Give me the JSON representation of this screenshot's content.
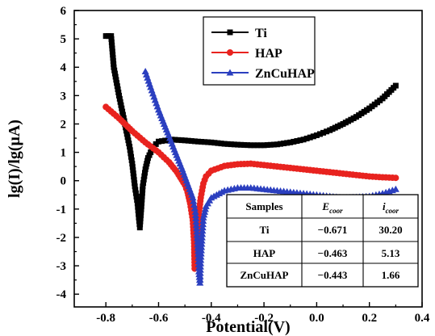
{
  "chart_data": {
    "type": "scatter",
    "xlabel": "Potential(V)",
    "ylabel": "lg(I)/lg(μA)",
    "xlim": [
      -0.92,
      0.4
    ],
    "ylim": [
      -4.45,
      6
    ],
    "xticks": [
      -0.8,
      -0.6,
      -0.4,
      -0.2,
      0.0,
      0.2,
      0.4
    ],
    "xtick_labels": [
      "-0.8",
      "-0.6",
      "-0.4",
      "-0.2",
      "0.0",
      "0.2",
      "0.4"
    ],
    "yticks": [
      -4,
      -3,
      -2,
      -1,
      0,
      1,
      2,
      3,
      4,
      5,
      6
    ],
    "ytick_labels": [
      "-4",
      "-3",
      "-2",
      "-1",
      "0",
      "1",
      "2",
      "3",
      "4",
      "5",
      "6"
    ],
    "legend_position": "top-right",
    "series": [
      {
        "name": "Ti",
        "marker": "square",
        "color": "#000000",
        "points": [
          [
            -0.8,
            5.1
          ],
          [
            -0.78,
            5.1
          ],
          [
            -0.77,
            4.0
          ],
          [
            -0.75,
            3.0
          ],
          [
            -0.73,
            2.1
          ],
          [
            -0.71,
            1.2
          ],
          [
            -0.7,
            0.6
          ],
          [
            -0.69,
            -0.2
          ],
          [
            -0.68,
            -0.8
          ],
          [
            -0.675,
            -1.3
          ],
          [
            -0.671,
            -1.65
          ],
          [
            -0.665,
            -0.9
          ],
          [
            -0.66,
            -0.2
          ],
          [
            -0.65,
            0.4
          ],
          [
            -0.64,
            0.8
          ],
          [
            -0.62,
            1.2
          ],
          [
            -0.6,
            1.38
          ],
          [
            -0.55,
            1.45
          ],
          [
            -0.5,
            1.42
          ],
          [
            -0.45,
            1.38
          ],
          [
            -0.4,
            1.35
          ],
          [
            -0.35,
            1.3
          ],
          [
            -0.3,
            1.27
          ],
          [
            -0.25,
            1.25
          ],
          [
            -0.2,
            1.25
          ],
          [
            -0.15,
            1.28
          ],
          [
            -0.1,
            1.35
          ],
          [
            -0.05,
            1.45
          ],
          [
            0.0,
            1.6
          ],
          [
            0.05,
            1.78
          ],
          [
            0.1,
            2.0
          ],
          [
            0.15,
            2.25
          ],
          [
            0.2,
            2.55
          ],
          [
            0.25,
            2.9
          ],
          [
            0.3,
            3.35
          ]
        ]
      },
      {
        "name": "HAP",
        "marker": "circle",
        "color": "#e8231f",
        "points": [
          [
            -0.8,
            2.6
          ],
          [
            -0.75,
            2.2
          ],
          [
            -0.7,
            1.75
          ],
          [
            -0.65,
            1.35
          ],
          [
            -0.6,
            1.0
          ],
          [
            -0.56,
            0.65
          ],
          [
            -0.53,
            0.3
          ],
          [
            -0.5,
            -0.15
          ],
          [
            -0.49,
            -0.4
          ],
          [
            -0.48,
            -0.8
          ],
          [
            -0.47,
            -1.4
          ],
          [
            -0.465,
            -2.2
          ],
          [
            -0.463,
            -3.1
          ],
          [
            -0.455,
            -2.3
          ],
          [
            -0.45,
            -1.4
          ],
          [
            -0.44,
            -0.6
          ],
          [
            -0.43,
            -0.1
          ],
          [
            -0.42,
            0.15
          ],
          [
            -0.4,
            0.35
          ],
          [
            -0.35,
            0.52
          ],
          [
            -0.3,
            0.58
          ],
          [
            -0.25,
            0.6
          ],
          [
            -0.2,
            0.55
          ],
          [
            -0.15,
            0.5
          ],
          [
            -0.1,
            0.45
          ],
          [
            -0.05,
            0.4
          ],
          [
            0.0,
            0.35
          ],
          [
            0.05,
            0.3
          ],
          [
            0.1,
            0.25
          ],
          [
            0.15,
            0.2
          ],
          [
            0.2,
            0.15
          ],
          [
            0.25,
            0.12
          ],
          [
            0.3,
            0.1
          ]
        ]
      },
      {
        "name": "ZnCuHAP",
        "marker": "triangle",
        "color": "#2b3fbf",
        "points": [
          [
            -0.65,
            3.85
          ],
          [
            -0.63,
            3.3
          ],
          [
            -0.6,
            2.5
          ],
          [
            -0.57,
            1.8
          ],
          [
            -0.54,
            1.1
          ],
          [
            -0.51,
            0.4
          ],
          [
            -0.49,
            -0.1
          ],
          [
            -0.47,
            -0.6
          ],
          [
            -0.46,
            -1.1
          ],
          [
            -0.455,
            -1.8
          ],
          [
            -0.45,
            -2.6
          ],
          [
            -0.447,
            -3.2
          ],
          [
            -0.443,
            -3.6
          ],
          [
            -0.44,
            -2.8
          ],
          [
            -0.435,
            -2.0
          ],
          [
            -0.43,
            -1.3
          ],
          [
            -0.42,
            -0.9
          ],
          [
            -0.4,
            -0.6
          ],
          [
            -0.35,
            -0.35
          ],
          [
            -0.3,
            -0.25
          ],
          [
            -0.25,
            -0.25
          ],
          [
            -0.2,
            -0.3
          ],
          [
            -0.15,
            -0.35
          ],
          [
            -0.1,
            -0.4
          ],
          [
            -0.05,
            -0.45
          ],
          [
            0.0,
            -0.5
          ],
          [
            0.05,
            -0.55
          ],
          [
            0.1,
            -0.6
          ],
          [
            0.15,
            -0.58
          ],
          [
            0.2,
            -0.55
          ],
          [
            0.25,
            -0.45
          ],
          [
            0.3,
            -0.3
          ]
        ]
      }
    ],
    "table": {
      "headers": [
        "Samples",
        "E",
        "i"
      ],
      "header_subscripts": [
        "",
        "coor",
        "coor"
      ],
      "rows": [
        [
          "Ti",
          "−0.671",
          "30.20"
        ],
        [
          "HAP",
          "−0.463",
          "5.13"
        ],
        [
          "ZnCuHAP",
          "−0.443",
          "1.66"
        ]
      ]
    }
  }
}
